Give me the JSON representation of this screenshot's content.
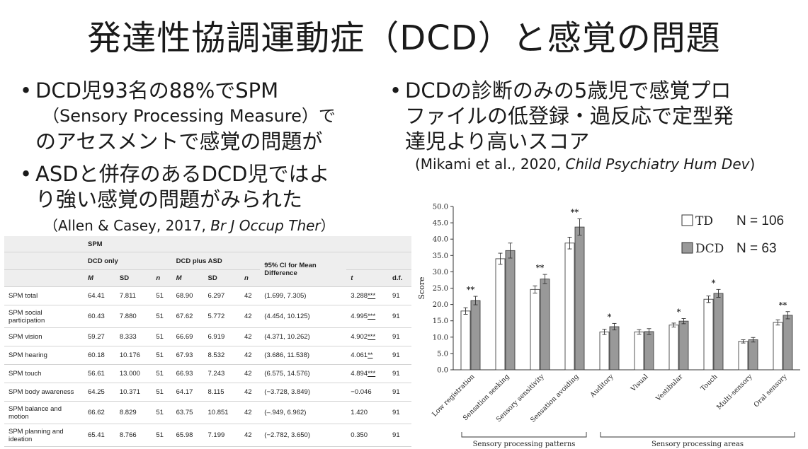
{
  "slide": {
    "title": "発達性協調運動症（DCD）と感覚の問題",
    "left_bullets": [
      {
        "lines": [
          "DCD児93名の88%でSPM",
          "（Sensory Processing Measure）で",
          "のアセスメントで感覚の問題が"
        ]
      },
      {
        "lines": [
          "ASDと併存のあるDCD児ではよ",
          "り強い感覚の問題がみられた"
        ]
      }
    ],
    "left_citation": {
      "prefix": "（Allen & Casey, 2017, ",
      "journal": "Br J Occup Ther",
      "suffix": "）"
    },
    "right_bullet": {
      "lines": [
        "DCDの診断のみの5歳児で感覚プロ",
        "ファイルの低登録・過反応で定型発",
        "達児より高いスコア"
      ]
    },
    "right_citation": {
      "prefix": "(Mikami et al., 2020, ",
      "journal": "Child Psychiatry Hum Dev",
      "suffix": ")"
    },
    "bullet_symbol": "•"
  },
  "table": {
    "header_group": "SPM",
    "subgroups": [
      "DCD only",
      "DCD plus ASD"
    ],
    "ci_header": "95% CI for Mean Difference",
    "columns": [
      "M",
      "SD",
      "n",
      "M",
      "SD",
      "n",
      "t",
      "d.f."
    ],
    "rows": [
      {
        "label": "SPM total",
        "m1": "64.41",
        "sd1": "7.811",
        "n1": "51",
        "m2": "68.90",
        "sd2": "6.297",
        "n2": "42",
        "ci": "(1.699, 7.305)",
        "t": "3.288",
        "sig": "***",
        "df": "91"
      },
      {
        "label": "SPM social participation",
        "m1": "60.43",
        "sd1": "7.880",
        "n1": "51",
        "m2": "67.62",
        "sd2": "5.772",
        "n2": "42",
        "ci": "(4.454, 10.125)",
        "t": "4.995",
        "sig": "***",
        "df": "91"
      },
      {
        "label": "SPM vision",
        "m1": "59.27",
        "sd1": "8.333",
        "n1": "51",
        "m2": "66.69",
        "sd2": "6.919",
        "n2": "42",
        "ci": "(4.371, 10.262)",
        "t": "4.902",
        "sig": "***",
        "df": "91"
      },
      {
        "label": "SPM hearing",
        "m1": "60.18",
        "sd1": "10.176",
        "n1": "51",
        "m2": "67.93",
        "sd2": "8.532",
        "n2": "42",
        "ci": "(3.686, 11.538)",
        "t": "4.061",
        "sig": "**",
        "df": "91"
      },
      {
        "label": "SPM touch",
        "m1": "56.61",
        "sd1": "13.000",
        "n1": "51",
        "m2": "66.93",
        "sd2": "7.243",
        "n2": "42",
        "ci": "(6.575, 14.576)",
        "t": "4.894",
        "sig": "***",
        "df": "91"
      },
      {
        "label": "SPM body awareness",
        "m1": "64.25",
        "sd1": "10.371",
        "n1": "51",
        "m2": "64.17",
        "sd2": "8.115",
        "n2": "42",
        "ci": "(−3.728, 3.849)",
        "t": "−0.046",
        "sig": "",
        "df": "91"
      },
      {
        "label": "SPM balance and motion",
        "m1": "66.62",
        "sd1": "8.829",
        "n1": "51",
        "m2": "63.75",
        "sd2": "10.851",
        "n2": "42",
        "ci": "(–.949, 6.962)",
        "t": "1.420",
        "sig": "",
        "df": "91"
      },
      {
        "label": "SPM planning and ideation",
        "m1": "65.41",
        "sd1": "8.766",
        "n1": "51",
        "m2": "65.98",
        "sd2": "7.199",
        "n2": "42",
        "ci": "(−2.782, 3.650)",
        "t": "0.350",
        "sig": "",
        "df": "91"
      }
    ]
  },
  "chart_data": {
    "type": "bar",
    "title": "",
    "xlabel": "",
    "ylabel": "Score",
    "ylim": [
      0,
      50
    ],
    "yticks": [
      "0.0",
      "5.0",
      "10.0",
      "15.0",
      "20.0",
      "25.0",
      "30.0",
      "35.0",
      "40.0",
      "45.0",
      "50.0"
    ],
    "categories": [
      "Low registration",
      "Sensation seeking",
      "Sensory sensitivity",
      "Sensation avoiding",
      "Auditory",
      "Visual",
      "Vestibular",
      "Touch",
      "Multi-sensory",
      "Oral sensory"
    ],
    "series": [
      {
        "name": "TD",
        "legend_n": "N = 106",
        "color": "#ffffff",
        "values": [
          18.0,
          34.0,
          24.6,
          38.8,
          11.6,
          11.6,
          13.7,
          21.6,
          8.7,
          14.5
        ],
        "errors": [
          1.0,
          1.7,
          1.1,
          1.8,
          0.8,
          0.7,
          0.6,
          1.0,
          0.5,
          0.8
        ]
      },
      {
        "name": "DCD",
        "legend_n": "N = 63",
        "color": "#999999",
        "values": [
          21.2,
          36.5,
          27.8,
          43.7,
          13.2,
          11.7,
          14.9,
          23.4,
          9.2,
          16.7
        ],
        "errors": [
          1.3,
          2.3,
          1.4,
          2.5,
          1.0,
          0.9,
          0.8,
          1.2,
          0.7,
          1.1
        ]
      }
    ],
    "significance": [
      "**",
      "",
      "**",
      "**",
      "*",
      "",
      "*",
      "*",
      "",
      "**"
    ],
    "group_labels": [
      {
        "label": "Sensory processing patterns",
        "start": 0,
        "end": 3
      },
      {
        "label": "Sensory processing areas",
        "start": 4,
        "end": 9
      }
    ],
    "legend_position": "top-right",
    "grid": false
  }
}
